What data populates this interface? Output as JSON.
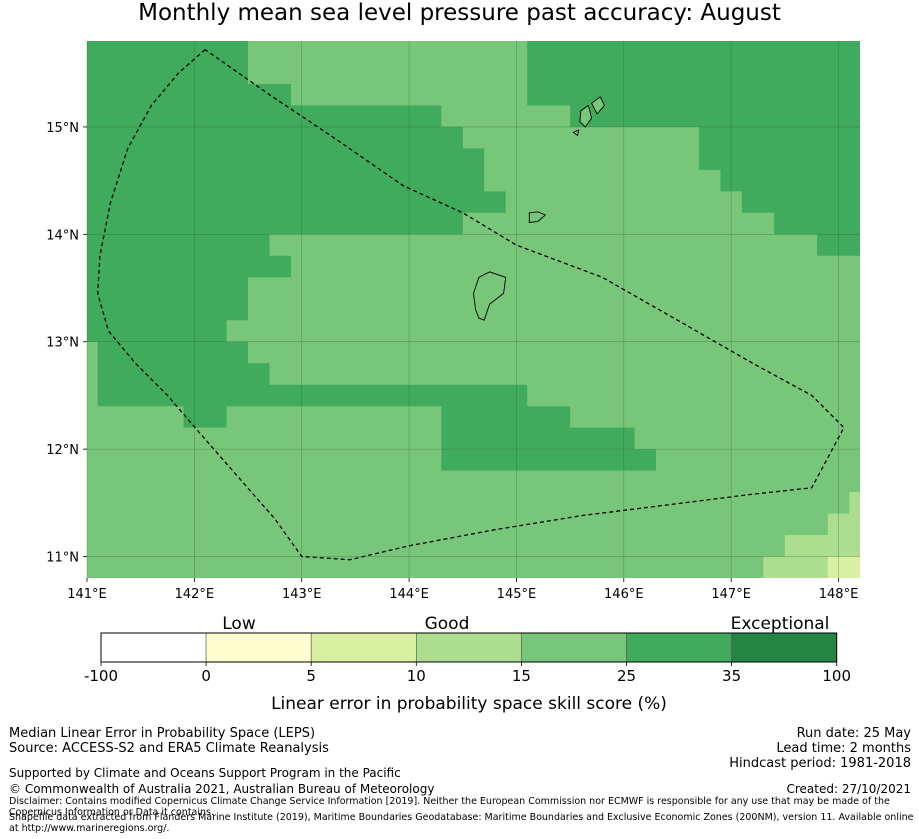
{
  "title": "Monthly mean sea level pressure past accuracy: August",
  "colors": {
    "c0": "#ffffff",
    "c1": "#fffccd",
    "c2": "#d9f0a2",
    "c3": "#addd8e",
    "c4": "#78c679",
    "c5": "#41ab5d",
    "c6": "#238443"
  },
  "map": {
    "lon_range": [
      141.0,
      148.2
    ],
    "lat_range": [
      10.8,
      15.8
    ],
    "lon_ticks": [
      "141°E",
      "142°E",
      "143°E",
      "144°E",
      "145°E",
      "146°E",
      "147°E",
      "148°E"
    ],
    "lat_ticks": [
      "11°N",
      "12°N",
      "13°N",
      "14°N",
      "15°N"
    ],
    "grid": true,
    "eez_outline_lonlat": [
      [
        142.1,
        15.72
      ],
      [
        141.85,
        15.5
      ],
      [
        141.6,
        15.2
      ],
      [
        141.38,
        14.8
      ],
      [
        141.22,
        14.3
      ],
      [
        141.12,
        13.8
      ],
      [
        141.1,
        13.45
      ],
      [
        141.2,
        13.1
      ],
      [
        141.45,
        12.8
      ],
      [
        141.75,
        12.5
      ],
      [
        142.05,
        12.15
      ],
      [
        142.4,
        11.75
      ],
      [
        142.75,
        11.35
      ],
      [
        143.0,
        11.0
      ],
      [
        143.45,
        10.97
      ],
      [
        144.0,
        11.1
      ],
      [
        144.8,
        11.25
      ],
      [
        145.6,
        11.38
      ],
      [
        146.4,
        11.48
      ],
      [
        147.2,
        11.58
      ],
      [
        147.75,
        11.64
      ],
      [
        148.05,
        12.2
      ],
      [
        147.75,
        12.5
      ],
      [
        147.2,
        12.8
      ],
      [
        146.5,
        13.2
      ],
      [
        145.8,
        13.6
      ],
      [
        145.0,
        13.9
      ],
      [
        144.5,
        14.2
      ],
      [
        143.95,
        14.45
      ],
      [
        143.3,
        14.9
      ],
      [
        142.7,
        15.3
      ],
      [
        142.1,
        15.72
      ]
    ],
    "islands": [
      [
        [
          144.65,
          13.6
        ],
        [
          144.75,
          13.65
        ],
        [
          144.9,
          13.6
        ],
        [
          144.88,
          13.45
        ],
        [
          144.75,
          13.35
        ],
        [
          144.7,
          13.2
        ],
        [
          144.65,
          13.22
        ],
        [
          144.62,
          13.3
        ],
        [
          144.6,
          13.45
        ],
        [
          144.65,
          13.6
        ]
      ],
      [
        [
          145.12,
          14.2
        ],
        [
          145.2,
          14.21
        ],
        [
          145.27,
          14.18
        ],
        [
          145.2,
          14.12
        ],
        [
          145.12,
          14.11
        ],
        [
          145.12,
          14.2
        ]
      ],
      [
        [
          145.6,
          15.15
        ],
        [
          145.67,
          15.2
        ],
        [
          145.7,
          15.08
        ],
        [
          145.64,
          15.0
        ],
        [
          145.59,
          15.05
        ],
        [
          145.6,
          15.15
        ]
      ],
      [
        [
          145.7,
          15.22
        ],
        [
          145.78,
          15.28
        ],
        [
          145.82,
          15.2
        ],
        [
          145.75,
          15.12
        ],
        [
          145.7,
          15.22
        ]
      ],
      [
        [
          145.53,
          14.95
        ],
        [
          145.58,
          14.97
        ],
        [
          145.57,
          14.92
        ],
        [
          145.53,
          14.95
        ]
      ]
    ],
    "regions": {
      "upper_dark_left": [
        [
          141.0,
          15.8
        ],
        [
          142.5,
          15.8
        ],
        [
          142.5,
          15.4
        ],
        [
          142.9,
          15.4
        ],
        [
          142.9,
          15.2
        ],
        [
          143.0,
          15.2
        ],
        [
          143.0,
          15.2
        ],
        [
          144.3,
          15.2
        ],
        [
          144.3,
          15.0
        ],
        [
          144.5,
          15.0
        ],
        [
          144.5,
          14.8
        ],
        [
          144.7,
          14.8
        ],
        [
          144.7,
          14.4
        ],
        [
          144.9,
          14.4
        ],
        [
          144.9,
          14.2
        ],
        [
          144.5,
          14.2
        ],
        [
          144.5,
          14.0
        ],
        [
          142.7,
          14.0
        ],
        [
          142.7,
          13.8
        ],
        [
          142.9,
          13.8
        ],
        [
          142.9,
          13.6
        ],
        [
          142.5,
          13.6
        ],
        [
          142.5,
          13.2
        ],
        [
          142.3,
          13.2
        ],
        [
          142.3,
          13.0
        ],
        [
          142.5,
          13.0
        ],
        [
          142.5,
          12.8
        ],
        [
          142.7,
          12.8
        ],
        [
          142.7,
          12.6
        ],
        [
          143.0,
          12.6
        ],
        [
          143.0,
          12.6
        ],
        [
          145.1,
          12.6
        ],
        [
          145.1,
          12.4
        ],
        [
          145.5,
          12.4
        ],
        [
          145.5,
          12.2
        ],
        [
          146.1,
          12.2
        ],
        [
          146.1,
          12.0
        ],
        [
          146.3,
          12.0
        ],
        [
          146.3,
          11.8
        ],
        [
          144.3,
          11.8
        ],
        [
          144.3,
          12.4
        ],
        [
          142.3,
          12.4
        ],
        [
          142.3,
          12.2
        ],
        [
          141.9,
          12.2
        ],
        [
          141.9,
          12.4
        ],
        [
          141.1,
          12.4
        ],
        [
          141.1,
          13.0
        ],
        [
          141.0,
          13.0
        ],
        [
          141.0,
          15.8
        ]
      ],
      "upper_dark_right": [
        [
          145.1,
          15.8
        ],
        [
          148.2,
          15.8
        ],
        [
          148.2,
          13.8
        ],
        [
          147.8,
          13.8
        ],
        [
          147.8,
          14.0
        ],
        [
          147.4,
          14.0
        ],
        [
          147.4,
          14.2
        ],
        [
          147.1,
          14.2
        ],
        [
          147.1,
          14.4
        ],
        [
          146.9,
          14.4
        ],
        [
          146.9,
          14.6
        ],
        [
          146.7,
          14.6
        ],
        [
          146.7,
          15.0
        ],
        [
          145.5,
          15.0
        ],
        [
          145.5,
          15.2
        ],
        [
          145.1,
          15.2
        ],
        [
          145.1,
          15.8
        ]
      ],
      "light_lower_right_1": [
        [
          147.3,
          10.8
        ],
        [
          148.2,
          10.8
        ],
        [
          148.2,
          11.6
        ],
        [
          148.1,
          11.6
        ],
        [
          148.1,
          11.4
        ],
        [
          147.9,
          11.4
        ],
        [
          147.9,
          11.2
        ],
        [
          147.5,
          11.2
        ],
        [
          147.5,
          11.0
        ],
        [
          147.3,
          11.0
        ],
        [
          147.3,
          10.8
        ]
      ],
      "pale_lower_right": [
        [
          147.9,
          10.8
        ],
        [
          148.2,
          10.8
        ],
        [
          148.2,
          11.0
        ],
        [
          147.9,
          11.0
        ],
        [
          147.9,
          10.8
        ]
      ]
    }
  },
  "legend": {
    "top_labels": [
      "Low",
      "Good",
      "Exceptional"
    ],
    "ticks": [
      "-100",
      "0",
      "5",
      "10",
      "15",
      "25",
      "35",
      "100"
    ],
    "label": "Linear error in probability space skill score (%)"
  },
  "footer": {
    "left_line1": "Median Linear Error in Probability Space (LEPS)",
    "left_line2": "Source: ACCESS-S2 and ERA5 Climate Reanalysis",
    "left_line3": "Supported by Climate and Oceans Support Program in the Pacific",
    "left_line4": "© Commonwealth of Australia 2021, Australian Bureau of Meteorology",
    "right_line1": "Run date: 25 May",
    "right_line2": "Lead time: 2 months",
    "right_line3": "Hindcast period: 1981-2018",
    "right_line4": "Created: 27/10/2021",
    "disclaimer1": "Disclaimer: Contains modified Copernicus Climate Change Service Information [2019]. Neither the European Commission nor ECMWF is responsible for any use that may be made of the Copernicus Information or Data it contains.",
    "disclaimer2": "Shapefile data extracted from Flanders Marine Institute (2019), Maritime Boundaries Geodatabase: Maritime Boundaries and Exclusive Economic Zones (200NM), version 11. Available online at http://www.marineregions.org/."
  }
}
